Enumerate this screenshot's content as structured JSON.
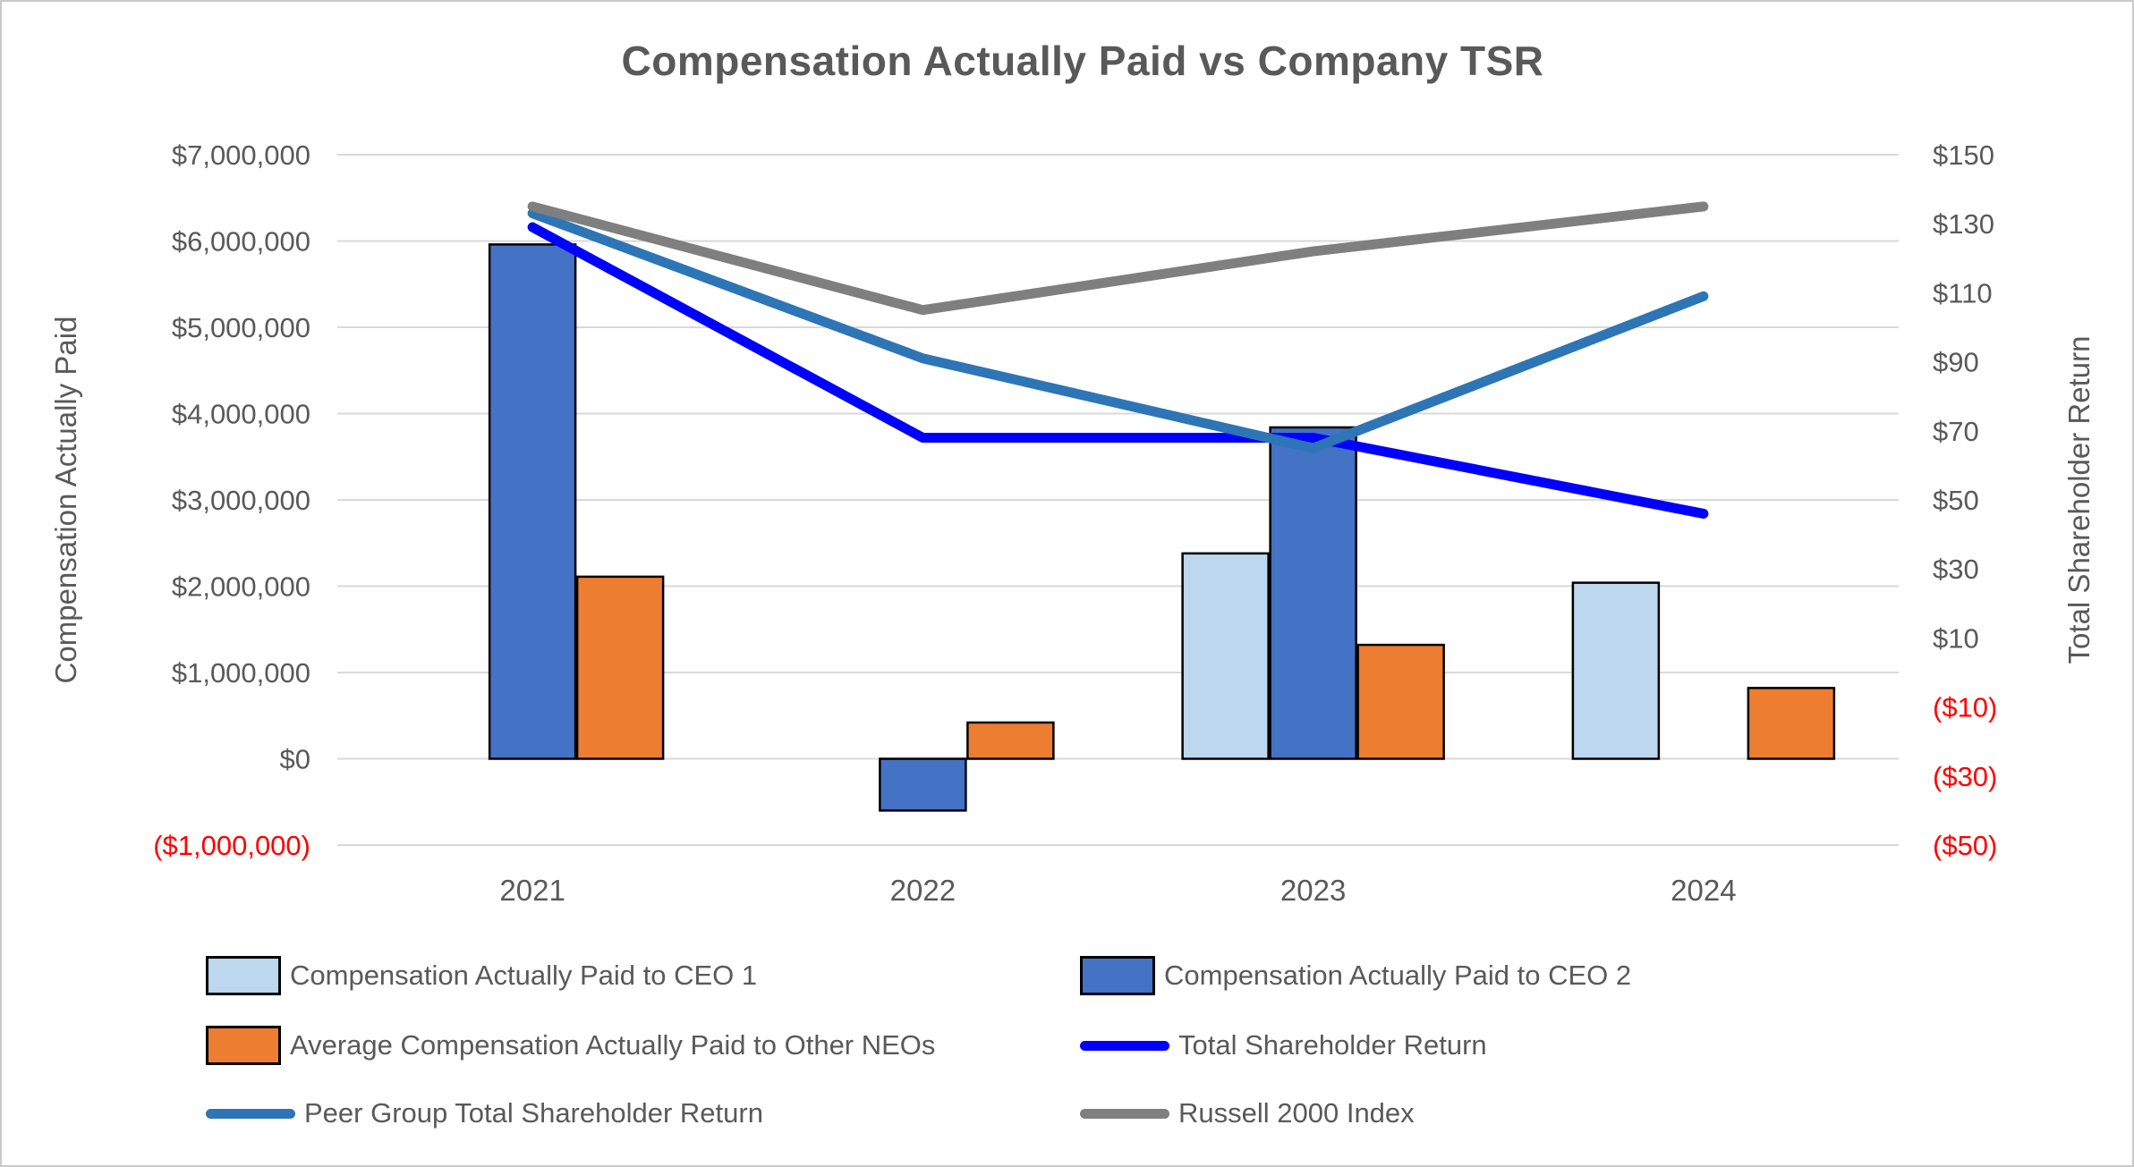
{
  "chart_data": {
    "type": "combo-bar-line",
    "title": "Compensation Actually Paid vs Company TSR",
    "categories": [
      "2021",
      "2022",
      "2023",
      "2024"
    ],
    "left_axis": {
      "label": "Compensation Actually Paid",
      "min": -1000000,
      "max": 7000000,
      "step": 1000000,
      "tick_labels": [
        "$7,000,000",
        "$6,000,000",
        "$5,000,000",
        "$4,000,000",
        "$3,000,000",
        "$2,000,000",
        "$1,000,000",
        "$0",
        "($1,000,000)"
      ]
    },
    "right_axis": {
      "label": "Total Shareholder Return",
      "min": -50,
      "max": 150,
      "step": 20,
      "tick_labels": [
        "$150",
        "$130",
        "$110",
        "$90",
        "$70",
        "$50",
        "$30",
        "$10",
        "($10)",
        "($30)",
        "($50)"
      ]
    },
    "bar_series": [
      {
        "name": "Compensation Actually Paid to CEO 1",
        "color": "#BDD7EE",
        "values": [
          null,
          null,
          2380000,
          2040000
        ]
      },
      {
        "name": "Compensation Actually Paid to CEO 2",
        "color": "#4472C4",
        "values": [
          5960000,
          -600000,
          3840000,
          null
        ]
      },
      {
        "name": "Average Compensation Actually Paid to Other NEOs",
        "color": "#ED7D31",
        "values": [
          2110000,
          420000,
          1320000,
          820000
        ]
      }
    ],
    "line_series": [
      {
        "name": "Total Shareholder Return",
        "color": "#0000FF",
        "values": [
          129,
          68,
          68,
          46
        ]
      },
      {
        "name": "Peer Group Total Shareholder Return",
        "color": "#2E75B6",
        "values": [
          133,
          91,
          65,
          109
        ]
      },
      {
        "name": "Russell 2000 Index",
        "color": "#7F7F7F",
        "values": [
          135,
          105,
          122,
          135
        ]
      }
    ],
    "legend_position": "bottom",
    "grid": true,
    "gridline_color": "#D9D9D9",
    "text_color": "#595959",
    "negative_label_color": "#FF0000",
    "bar_border_color": "#000000"
  }
}
